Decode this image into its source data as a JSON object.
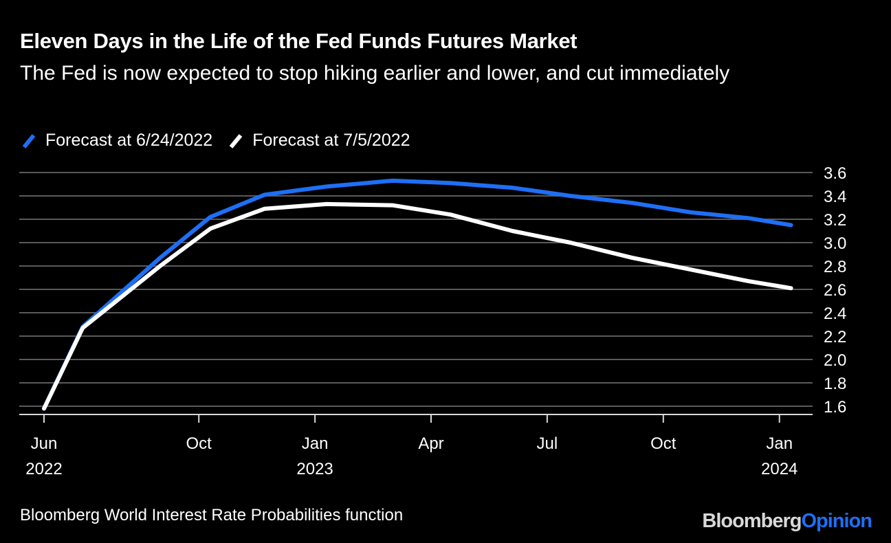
{
  "chart_data": {
    "type": "line",
    "title": "Eleven Days in the Life of the Fed Funds Futures Market",
    "subtitle": "The Fed is now expected to stop hiking earlier and lower, and cut immediately",
    "xlabel": "",
    "ylabel": "",
    "ylim": [
      1.6,
      3.6
    ],
    "yticks": [
      "3.6",
      "3.4",
      "3.2",
      "3.0",
      "2.8",
      "2.6",
      "2.4",
      "2.2",
      "2.0",
      "1.8",
      "1.6"
    ],
    "ytick_values": [
      3.6,
      3.4,
      3.2,
      3.0,
      2.8,
      2.6,
      2.4,
      2.2,
      2.0,
      1.8,
      1.6
    ],
    "y_axis_side": "right",
    "grid": true,
    "x_unit": "months since Jun 2022",
    "xlim": [
      -0.6,
      19.9
    ],
    "xticks": [
      {
        "pos": 0,
        "label": "Jun",
        "year": "2022"
      },
      {
        "pos": 4,
        "label": "Oct",
        "year": ""
      },
      {
        "pos": 7,
        "label": "Jan",
        "year": "2023"
      },
      {
        "pos": 10,
        "label": "Apr",
        "year": ""
      },
      {
        "pos": 13,
        "label": "Jul",
        "year": ""
      },
      {
        "pos": 16,
        "label": "Oct",
        "year": ""
      },
      {
        "pos": 19,
        "label": "Jan",
        "year": "2024"
      }
    ],
    "legend_position": "top-left",
    "series": [
      {
        "name": "Forecast at 6/24/2022",
        "color": "#1e6ff5",
        "x": [
          0,
          1,
          3,
          4.3,
          5.7,
          7.3,
          9,
          10.5,
          12.1,
          13.6,
          15.2,
          16.7,
          18.2,
          19.3
        ],
        "values": [
          1.58,
          2.28,
          2.87,
          3.22,
          3.41,
          3.48,
          3.53,
          3.51,
          3.47,
          3.4,
          3.34,
          3.26,
          3.21,
          3.15
        ]
      },
      {
        "name": "Forecast at 7/5/2022",
        "color": "#ffffff",
        "x": [
          0,
          1,
          3,
          4.3,
          5.7,
          7.3,
          9,
          10.5,
          12.1,
          13.6,
          15.2,
          16.7,
          18.2,
          19.3
        ],
        "values": [
          1.58,
          2.27,
          2.8,
          3.12,
          3.29,
          3.33,
          3.32,
          3.24,
          3.1,
          3.0,
          2.87,
          2.77,
          2.67,
          2.61
        ]
      }
    ]
  },
  "footer": {
    "source": "Bloomberg World Interest Rate Probabilities function",
    "brand_part1": "Bloomberg",
    "brand_part2": "Opinion"
  }
}
